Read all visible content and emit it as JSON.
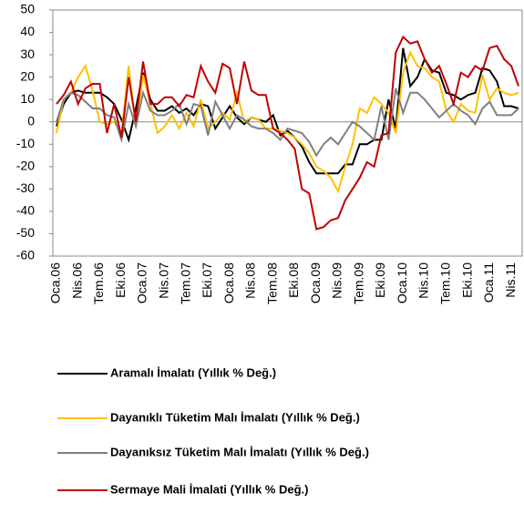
{
  "chart_data": {
    "type": "line",
    "categories": [
      "Oca.06",
      null,
      null,
      "Nis.06",
      null,
      null,
      "Tem.06",
      null,
      null,
      "Eki.06",
      null,
      null,
      "Oca.07",
      null,
      null,
      "Nis.07",
      null,
      null,
      "Tem.07",
      null,
      null,
      "Eki.07",
      null,
      null,
      "Oca.08",
      null,
      null,
      "Nis.08",
      null,
      null,
      "Tem.08",
      null,
      null,
      "Eki.08",
      null,
      null,
      "Oca.09",
      null,
      null,
      "Nis.09",
      null,
      null,
      "Tem.09",
      null,
      null,
      "Eki.09",
      null,
      null,
      "Oca.10",
      null,
      null,
      "Nis.10",
      null,
      null,
      "Tem.10",
      null,
      null,
      "Eki.10",
      null,
      null,
      "Oca.11",
      null,
      null,
      "Nis.11",
      null
    ],
    "series": [
      {
        "name": "Aramalı İmalatı (Yıllık % Değ.)",
        "color": "#000000",
        "values": [
          -2,
          8,
          13,
          14,
          13,
          13,
          13,
          11,
          8,
          1,
          -8,
          6,
          22,
          10,
          5,
          5,
          7,
          4,
          6,
          3,
          8,
          7,
          -3,
          2,
          7,
          2,
          -1,
          2,
          1,
          0,
          3,
          -6,
          -4,
          -7,
          -11,
          -18,
          -23,
          -23,
          -23,
          -23,
          -19,
          -19,
          -10,
          -10,
          -8,
          -8,
          10,
          -3,
          33,
          16,
          20,
          28,
          23,
          22,
          13,
          12,
          10,
          12,
          13,
          24,
          23,
          18,
          7,
          7,
          6
        ]
      },
      {
        "name": "Dayanıklı Tüketim Malı İmalatı (Yıllık % Değ.)",
        "color": "#ffc000",
        "values": [
          -5,
          10,
          13,
          20,
          25,
          14,
          0,
          -1,
          0,
          -5,
          25,
          -2,
          21,
          8,
          -5,
          -2,
          3,
          -3,
          4,
          -2,
          10,
          -3,
          0,
          4,
          1,
          13,
          0,
          2,
          1,
          -3,
          -3,
          -4,
          -5,
          -7,
          -10,
          -14,
          -20,
          -22,
          -25,
          -31,
          -20,
          -10,
          6,
          4,
          11,
          8,
          4,
          -5,
          22,
          31,
          25,
          24,
          20,
          18,
          5,
          0,
          8,
          5,
          4,
          21,
          10,
          15,
          13,
          12,
          13
        ]
      },
      {
        "name": "Dayanıksız Tüketim Malı İmalatı (Yıllık % Değ.)",
        "color": "#808080",
        "values": [
          0,
          10,
          13,
          12,
          9,
          6,
          6,
          3,
          2,
          -8,
          8,
          -2,
          13,
          5,
          3,
          3,
          5,
          8,
          -1,
          8,
          7,
          -6,
          9,
          3,
          -3,
          3,
          1,
          -2,
          -3,
          -3,
          -5,
          -8,
          -3,
          -4,
          -5,
          -9,
          -15,
          -10,
          -7,
          -10,
          -5,
          0,
          -2,
          -5,
          -8,
          7,
          -8,
          15,
          4,
          13,
          13,
          10,
          6,
          2,
          5,
          8,
          5,
          3,
          -1,
          6,
          9,
          3,
          3,
          3,
          6
        ]
      },
      {
        "name": "Sermaye Mali İmalati (Yıllık % Değ.)",
        "color": "#c00000",
        "values": [
          8,
          12,
          18,
          8,
          15,
          17,
          17,
          -5,
          8,
          -7,
          20,
          0,
          27,
          8,
          8,
          11,
          11,
          7,
          12,
          11,
          25,
          18,
          13,
          26,
          24,
          8,
          27,
          14,
          12,
          12,
          -3,
          -5,
          -8,
          -12,
          -30,
          -32,
          -48,
          -47,
          -44,
          -43,
          -35,
          -30,
          -25,
          -18,
          -20,
          -6,
          -5,
          31,
          38,
          35,
          36,
          28,
          22,
          25,
          17,
          8,
          22,
          20,
          25,
          23,
          33,
          34,
          28,
          25,
          16
        ]
      }
    ],
    "ylim": [
      -60,
      50
    ],
    "yticks": [
      -60,
      -50,
      -40,
      -30,
      -20,
      -10,
      0,
      10,
      20,
      30,
      40,
      50
    ]
  }
}
